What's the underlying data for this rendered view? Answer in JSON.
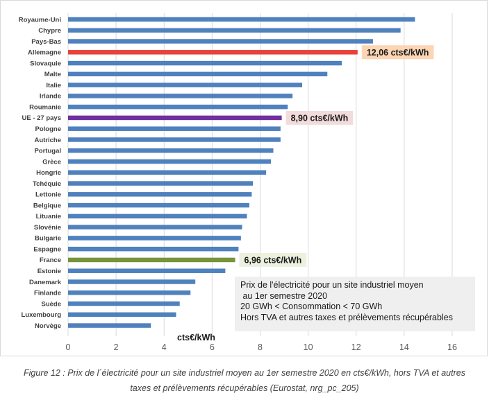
{
  "chart_data": {
    "type": "bar",
    "orientation": "horizontal",
    "title": "",
    "xlabel": "cts€/kWh",
    "ylabel": "",
    "xlim": [
      0,
      16
    ],
    "xticks": [
      0,
      2,
      4,
      6,
      8,
      10,
      12,
      14,
      16
    ],
    "grid": true,
    "categories": [
      "Royaume-Uni",
      "Chypre",
      "Pays-Bas",
      "Allemagne",
      "Slovaquie",
      "Malte",
      "Italie",
      "Irlande",
      "Roumanie",
      "UE - 27 pays",
      "Pologne",
      "Autriche",
      "Portugal",
      "Grèce",
      "Hongrie",
      "Tchéquie",
      "Lettonie",
      "Belgique",
      "Lituanie",
      "Slovénie",
      "Bulgarie",
      "Espagne",
      "France",
      "Estonie",
      "Danemark",
      "Finlande",
      "Suède",
      "Luxembourg",
      "Norvège"
    ],
    "values": [
      14.45,
      13.85,
      12.7,
      12.06,
      11.4,
      10.8,
      9.75,
      9.35,
      9.15,
      8.9,
      8.85,
      8.85,
      8.55,
      8.45,
      8.25,
      7.7,
      7.65,
      7.55,
      7.45,
      7.25,
      7.2,
      7.1,
      6.96,
      6.55,
      5.3,
      5.1,
      4.65,
      4.5,
      3.45
    ],
    "colors": {
      "default": "#4f81bd",
      "Allemagne": "#e8423b",
      "UE - 27 pays": "#7030a0",
      "France": "#77933c"
    },
    "annotations": [
      {
        "category": "Allemagne",
        "text": "12,06 cts€/kWh",
        "background": "#fcd5b4"
      },
      {
        "category": "UE - 27 pays",
        "text": "8,90 cts€/kWh",
        "background": "#f2dcdb"
      },
      {
        "category": "France",
        "text": "6,96 cts€/kWh",
        "background": "#ebf1de"
      }
    ]
  },
  "info_box": {
    "line1": "Prix de l'électricité pour un site industriel moyen",
    "line2": " au 1er semestre 2020",
    "line3": "20 GWh < Consommation < 70 GWh",
    "line4": "Hors TVA et autres taxes et prélèvements récupérables"
  },
  "unit_label": "cts€/kWh",
  "caption": {
    "line1": "Figure 12 : Prix de l´électricité pour un site industriel moyen au 1er semestre 2020 en cts€/kWh, hors TVA et autres",
    "line2": "taxes et prélèvements récupérables (Eurostat, nrg_pc_205)"
  }
}
